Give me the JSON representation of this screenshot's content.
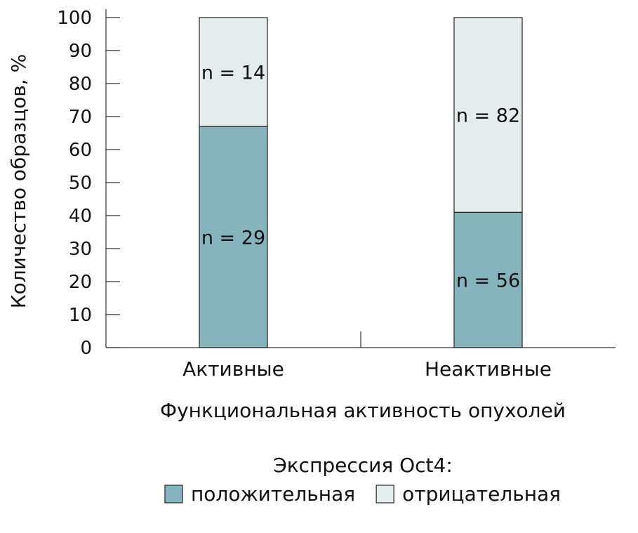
{
  "chart_data": {
    "type": "bar",
    "stacked": true,
    "categories": [
      "Активные",
      "Неактивные"
    ],
    "series": [
      {
        "name": "положительная",
        "color": "#85b4bd",
        "values": [
          67,
          41
        ],
        "labels": [
          "n = 29",
          "n = 56"
        ]
      },
      {
        "name": "отрицательная",
        "color": "#e5ecee",
        "values": [
          33,
          59
        ],
        "labels": [
          "n = 14",
          "n = 82"
        ]
      }
    ],
    "ylabel": "Количество образцов, %",
    "xlabel": "Функциональная активность опухолей",
    "ylim": [
      0,
      100
    ],
    "yticks": [
      0,
      10,
      20,
      30,
      40,
      50,
      60,
      70,
      80,
      90,
      100
    ],
    "grid": false,
    "legend": {
      "title": "Экспрессия Oct4:",
      "placement": "bottom-center"
    }
  }
}
